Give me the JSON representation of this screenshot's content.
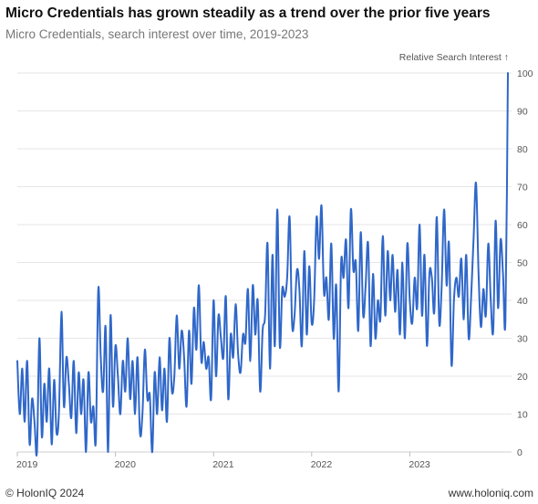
{
  "header": {
    "title": "Micro Credentials has grown steadily as a trend over the prior five years",
    "subtitle": "Micro Credentials, search interest over time, 2019-2023"
  },
  "footer": {
    "copyright": "© HolonIQ 2024",
    "website": "www.holoniq.com"
  },
  "colors": {
    "line": "#2f67c9",
    "grid": "#e6e6e6",
    "tick_text": "#555555"
  },
  "chart_data": {
    "type": "line",
    "title": "Micro Credentials has grown steadily as a trend over the prior five years",
    "subtitle": "Micro Credentials, search interest over time, 2019-2023",
    "ylabel": "Relative Search Interest ↑",
    "xlabel": "",
    "ylim": [
      0,
      100
    ],
    "xlim": [
      2019.0,
      2024.0
    ],
    "y_ticks": [
      0,
      10,
      20,
      30,
      40,
      50,
      60,
      70,
      80,
      90,
      100
    ],
    "x_ticks": [
      {
        "value": 2019,
        "label": "2019"
      },
      {
        "value": 2020,
        "label": "2020"
      },
      {
        "value": 2021,
        "label": "2021"
      },
      {
        "value": 2022,
        "label": "2022"
      },
      {
        "value": 2023,
        "label": "2023"
      }
    ],
    "grid": true,
    "series": [
      {
        "name": "Micro Credentials",
        "x": [
          2019.0,
          2019.025,
          2019.05,
          2019.075,
          2019.1,
          2019.125,
          2019.15,
          2019.175,
          2019.2,
          2019.225,
          2019.25,
          2019.275,
          2019.3,
          2019.325,
          2019.35,
          2019.375,
          2019.4,
          2019.425,
          2019.45,
          2019.475,
          2019.5,
          2019.525,
          2019.55,
          2019.575,
          2019.6,
          2019.625,
          2019.65,
          2019.675,
          2019.7,
          2019.725,
          2019.75,
          2019.775,
          2019.8,
          2019.825,
          2019.85,
          2019.875,
          2019.9,
          2019.925,
          2019.95,
          2019.975,
          2020.0,
          2020.025,
          2020.05,
          2020.075,
          2020.1,
          2020.125,
          2020.15,
          2020.175,
          2020.2,
          2020.225,
          2020.25,
          2020.275,
          2020.3,
          2020.325,
          2020.35,
          2020.375,
          2020.4,
          2020.425,
          2020.45,
          2020.475,
          2020.5,
          2020.525,
          2020.55,
          2020.575,
          2020.6,
          2020.625,
          2020.65,
          2020.675,
          2020.7,
          2020.725,
          2020.75,
          2020.775,
          2020.8,
          2020.825,
          2020.85,
          2020.875,
          2020.9,
          2020.925,
          2020.95,
          2020.975,
          2021.0,
          2021.025,
          2021.05,
          2021.075,
          2021.1,
          2021.125,
          2021.15,
          2021.175,
          2021.2,
          2021.225,
          2021.25,
          2021.275,
          2021.3,
          2021.325,
          2021.35,
          2021.375,
          2021.4,
          2021.425,
          2021.45,
          2021.475,
          2021.5,
          2021.525,
          2021.55,
          2021.575,
          2021.6,
          2021.625,
          2021.65,
          2021.675,
          2021.7,
          2021.725,
          2021.75,
          2021.775,
          2021.8,
          2021.825,
          2021.85,
          2021.875,
          2021.9,
          2021.925,
          2021.95,
          2021.975,
          2022.0,
          2022.025,
          2022.05,
          2022.075,
          2022.1,
          2022.125,
          2022.15,
          2022.175,
          2022.2,
          2022.225,
          2022.25,
          2022.275,
          2022.3,
          2022.325,
          2022.35,
          2022.375,
          2022.4,
          2022.425,
          2022.45,
          2022.475,
          2022.5,
          2022.525,
          2022.55,
          2022.575,
          2022.6,
          2022.625,
          2022.65,
          2022.675,
          2022.7,
          2022.725,
          2022.75,
          2022.775,
          2022.8,
          2022.825,
          2022.85,
          2022.875,
          2022.9,
          2022.925,
          2022.95,
          2022.975,
          2023.0,
          2023.025,
          2023.05,
          2023.075,
          2023.1,
          2023.125,
          2023.15,
          2023.175,
          2023.2,
          2023.225,
          2023.25,
          2023.275,
          2023.3,
          2023.325,
          2023.35,
          2023.375,
          2023.4,
          2023.425,
          2023.45,
          2023.475,
          2023.5,
          2023.525,
          2023.55,
          2023.575,
          2023.6,
          2023.625,
          2023.65,
          2023.675,
          2023.7,
          2023.725,
          2023.75,
          2023.775,
          2023.8,
          2023.825,
          2023.85,
          2023.875,
          2023.9,
          2023.925,
          2023.95,
          2023.975,
          2024.0
        ],
        "y": [
          24,
          10,
          22,
          8,
          24,
          2,
          14,
          8,
          0,
          30,
          4,
          18,
          8,
          22,
          2,
          19,
          5,
          11,
          37,
          12,
          25,
          18,
          9,
          24,
          5,
          21,
          10,
          19,
          0,
          21,
          8,
          12,
          3,
          43,
          25,
          16,
          33,
          0,
          36,
          12,
          28,
          20,
          10,
          24,
          16,
          30,
          14,
          24,
          10,
          25,
          5,
          10,
          27,
          14,
          15,
          0,
          21,
          10,
          25,
          11,
          22,
          8,
          30,
          16,
          20,
          36,
          22,
          32,
          25,
          12,
          32,
          18,
          38,
          27,
          44,
          24,
          29,
          22,
          25,
          14,
          40,
          20,
          36,
          30,
          25,
          41,
          14,
          31,
          25,
          39,
          26,
          21,
          31,
          29,
          43,
          24,
          44,
          31,
          40,
          16,
          32,
          36,
          55,
          22,
          52,
          28,
          64,
          28,
          43,
          41,
          46,
          62,
          34,
          36,
          48,
          43,
          28,
          53,
          31,
          49,
          34,
          40,
          62,
          51,
          65,
          42,
          46,
          35,
          55,
          30,
          44,
          16,
          50,
          46,
          56,
          38,
          64,
          48,
          50,
          32,
          58,
          36,
          44,
          55,
          28,
          47,
          30,
          40,
          35,
          57,
          36,
          53,
          40,
          52,
          37,
          48,
          31,
          50,
          30,
          55,
          40,
          34,
          46,
          38,
          60,
          36,
          52,
          28,
          47,
          46,
          37,
          62,
          34,
          44,
          64,
          44,
          55,
          23,
          40,
          46,
          41,
          51,
          35,
          52,
          30,
          41,
          56,
          71,
          48,
          33,
          43,
          36,
          55,
          40,
          32,
          61,
          38,
          56,
          47,
          35,
          100
        ]
      }
    ]
  }
}
